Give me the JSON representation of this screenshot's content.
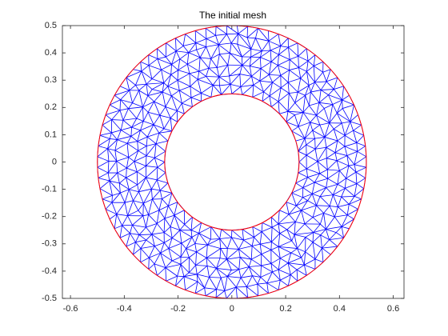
{
  "chart_data": {
    "type": "mesh",
    "title": "The initial mesh",
    "inner_radius": 0.25,
    "outer_radius": 0.5,
    "edge_color": "#0000ff",
    "boundary_color": "#ff0000",
    "xlim": [
      -0.63,
      0.64
    ],
    "ylim": [
      -0.5,
      0.5
    ],
    "xticks": [
      -0.6,
      -0.4,
      -0.2,
      0,
      0.2,
      0.4,
      0.6
    ],
    "yticks": [
      -0.5,
      -0.4,
      -0.3,
      -0.2,
      -0.1,
      0,
      0.1,
      0.2,
      0.3,
      0.4,
      0.5
    ]
  }
}
